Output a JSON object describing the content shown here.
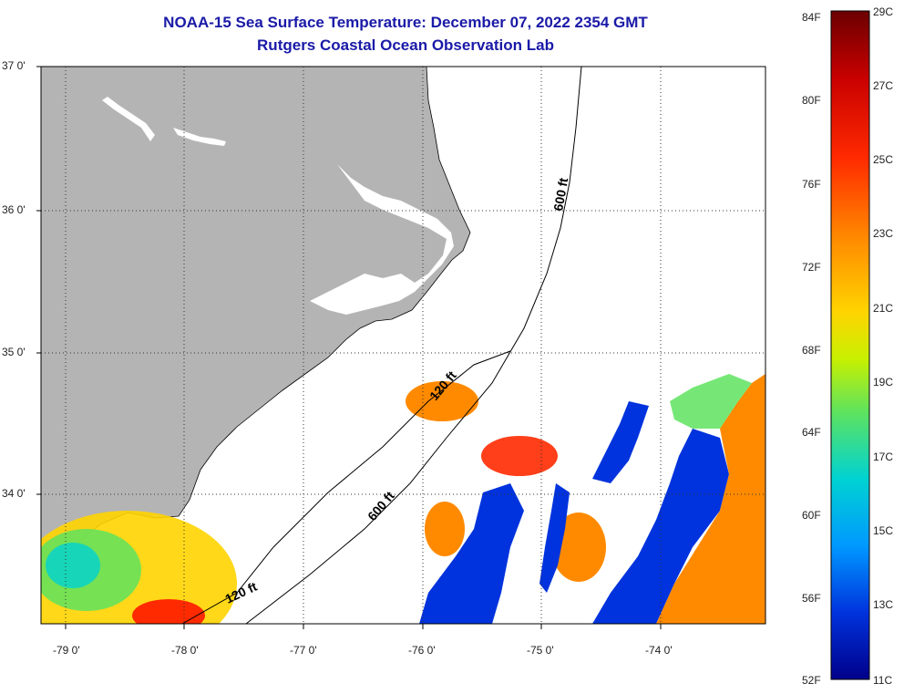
{
  "header": {
    "title": "NOAA-15 Sea Surface Temperature:  December 07, 2022 2354 GMT",
    "subtitle": "Rutgers Coastal Ocean Observation Lab"
  },
  "map": {
    "latitude_labels": [
      "37 0'",
      "36 0'",
      "35 0'",
      "34 0'"
    ],
    "longitude_labels": [
      "-79 0'",
      "-78 0'",
      "-77 0'",
      "-76 0'",
      "-75 0'",
      "-74 0'"
    ],
    "depth_contours": [
      {
        "name": "120 ft",
        "label": "120 ft"
      },
      {
        "name": "600 ft",
        "label": "600 ft"
      }
    ],
    "land_color": "#b4b4b4",
    "cloud_color": "#ffffff"
  },
  "colorbar": {
    "fahrenheit_labels": [
      "84F",
      "80F",
      "76F",
      "72F",
      "68F",
      "64F",
      "60F",
      "56F",
      "52F"
    ],
    "celsius_labels": [
      "29C",
      "27C",
      "25C",
      "23C",
      "21C",
      "19C",
      "17C",
      "15C",
      "13C",
      "11C"
    ],
    "colors": [
      "#6b0000",
      "#c80000",
      "#ff2a00",
      "#ff8a00",
      "#ffd400",
      "#c8f000",
      "#5ee35e",
      "#00d2d2",
      "#0099ff",
      "#0033dd",
      "#00008a"
    ]
  }
}
